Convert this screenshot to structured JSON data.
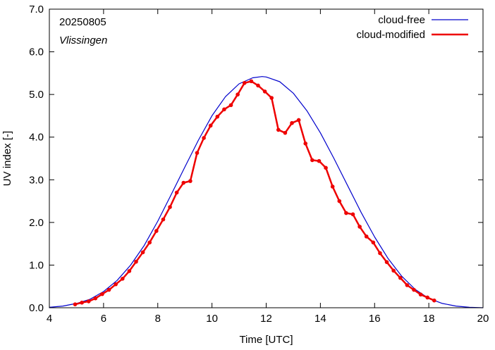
{
  "chart_data": {
    "type": "line",
    "title": "",
    "xlabel": "Time  [UTC]",
    "ylabel": "UV index  [-]",
    "xlim": [
      4,
      20
    ],
    "ylim": [
      0,
      7
    ],
    "x_ticks": [
      4,
      6,
      8,
      10,
      12,
      14,
      16,
      18,
      20
    ],
    "x_tick_labels": [
      "4",
      "6",
      "8",
      "10",
      "12",
      "14",
      "16",
      "18",
      "20"
    ],
    "y_ticks": [
      0,
      1,
      2,
      3,
      4,
      5,
      6,
      7
    ],
    "y_tick_labels": [
      "0.0",
      "1.0",
      "2.0",
      "3.0",
      "4.0",
      "5.0",
      "6.0",
      "7.0"
    ],
    "grid": false,
    "legend_position": "top-right",
    "annotations": {
      "date": "20250805",
      "location": "Vlissingen"
    },
    "series": [
      {
        "name": "cloud-free",
        "color": "#0000cc",
        "markers": false,
        "x": [
          4.0,
          4.5,
          5.0,
          5.5,
          6.0,
          6.5,
          7.0,
          7.5,
          8.0,
          8.5,
          9.0,
          9.5,
          10.0,
          10.5,
          11.0,
          11.5,
          11.85,
          12.0,
          12.5,
          13.0,
          13.5,
          14.0,
          14.5,
          15.0,
          15.5,
          16.0,
          16.5,
          17.0,
          17.5,
          18.0,
          18.5,
          19.0,
          19.5,
          20.0
        ],
        "y": [
          0.01,
          0.04,
          0.1,
          0.2,
          0.38,
          0.64,
          1.0,
          1.46,
          2.03,
          2.66,
          3.3,
          3.93,
          4.5,
          4.95,
          5.25,
          5.39,
          5.42,
          5.41,
          5.3,
          5.03,
          4.62,
          4.1,
          3.5,
          2.87,
          2.24,
          1.66,
          1.15,
          0.74,
          0.43,
          0.22,
          0.1,
          0.04,
          0.01,
          0.0
        ]
      },
      {
        "name": "cloud-modified",
        "color": "#ee0000",
        "markers": true,
        "x": [
          4.95,
          5.2,
          5.45,
          5.7,
          5.95,
          6.2,
          6.45,
          6.7,
          6.95,
          7.2,
          7.45,
          7.7,
          7.95,
          8.2,
          8.45,
          8.7,
          8.95,
          9.2,
          9.45,
          9.7,
          9.95,
          10.2,
          10.45,
          10.7,
          10.95,
          11.2,
          11.45,
          11.7,
          11.95,
          12.2,
          12.45,
          12.7,
          12.95,
          13.2,
          13.45,
          13.7,
          13.95,
          14.2,
          14.45,
          14.7,
          14.95,
          15.2,
          15.45,
          15.7,
          15.95,
          16.2,
          16.45,
          16.7,
          16.95,
          17.2,
          17.45,
          17.7,
          17.95,
          18.2
        ],
        "y": [
          0.08,
          0.12,
          0.15,
          0.22,
          0.32,
          0.42,
          0.55,
          0.68,
          0.86,
          1.08,
          1.3,
          1.53,
          1.8,
          2.07,
          2.36,
          2.7,
          2.93,
          2.97,
          3.63,
          3.98,
          4.27,
          4.48,
          4.65,
          4.75,
          5.0,
          5.27,
          5.31,
          5.21,
          5.07,
          4.92,
          4.17,
          4.1,
          4.33,
          4.4,
          3.85,
          3.46,
          3.44,
          3.28,
          2.84,
          2.5,
          2.22,
          2.19,
          1.9,
          1.67,
          1.53,
          1.28,
          1.07,
          0.87,
          0.7,
          0.53,
          0.42,
          0.31,
          0.24,
          0.17
        ]
      }
    ]
  }
}
